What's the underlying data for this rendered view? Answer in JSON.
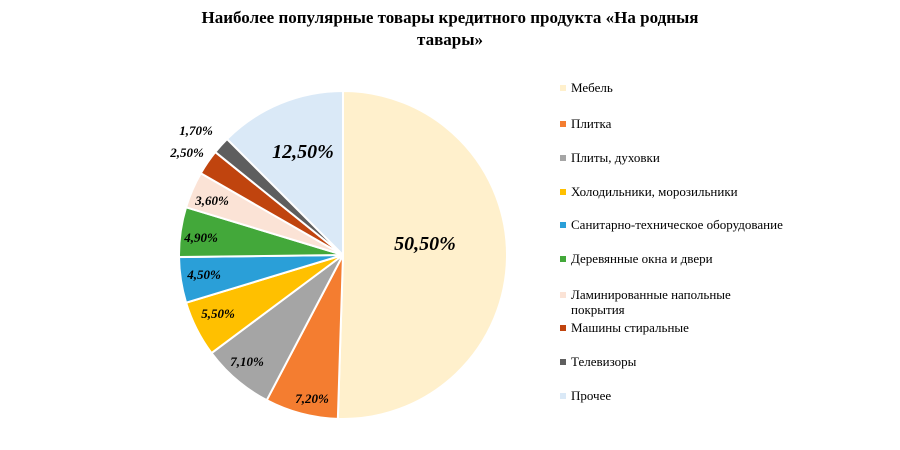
{
  "chart_data": {
    "type": "pie",
    "title": "Наиболее популярные товары кредитного продукта «На родныя тавары»",
    "categories": [
      "Мебель",
      "Плитка",
      "Плиты, духовки",
      "Холодильники, морозильники",
      "Санитарно-техническое оборудование",
      "Деревянные окна и двери",
      "Ламинированные напольные покрытия",
      "Машины стиральные",
      "Телевизоры",
      "Прочее"
    ],
    "values": [
      50.5,
      7.2,
      7.1,
      5.5,
      4.5,
      4.9,
      3.6,
      2.5,
      1.7,
      12.5
    ],
    "labels": [
      "50,50%",
      "7,20%",
      "7,10%",
      "5,50%",
      "4,50%",
      "4,90%",
      "3,60%",
      "2,50%",
      "1,70%",
      "12,50%"
    ],
    "colors": [
      "#FFF0CC",
      "#F47D30",
      "#A5A5A5",
      "#FFC000",
      "#2A9FD8",
      "#43A83A",
      "#FBE3D6",
      "#C0440E",
      "#5E5E5E",
      "#DAE9F7"
    ],
    "legend_position": "right"
  },
  "title_line1": "Наиболее популярные товары кредитного продукта «На родныя",
  "title_line2": "тавары»",
  "legend": [
    {
      "label": "Мебель",
      "color": "#FFF0CC"
    },
    {
      "label": "Плитка",
      "color": "#F47D30"
    },
    {
      "label": "Плиты, духовки",
      "color": "#A5A5A5"
    },
    {
      "label": "Холодильники, морозильники",
      "color": "#FFC000"
    },
    {
      "label": "Санитарно-техническое оборудование",
      "color": "#2A9FD8"
    },
    {
      "label": "Деревянные окна и двери",
      "color": "#43A83A"
    },
    {
      "label": "Ламинированные напольные покрытия",
      "color": "#FBE3D6"
    },
    {
      "label": "Машины стиральные",
      "color": "#C0440E"
    },
    {
      "label": "Телевизоры",
      "color": "#5E5E5E"
    },
    {
      "label": "Прочее",
      "color": "#DAE9F7"
    }
  ]
}
